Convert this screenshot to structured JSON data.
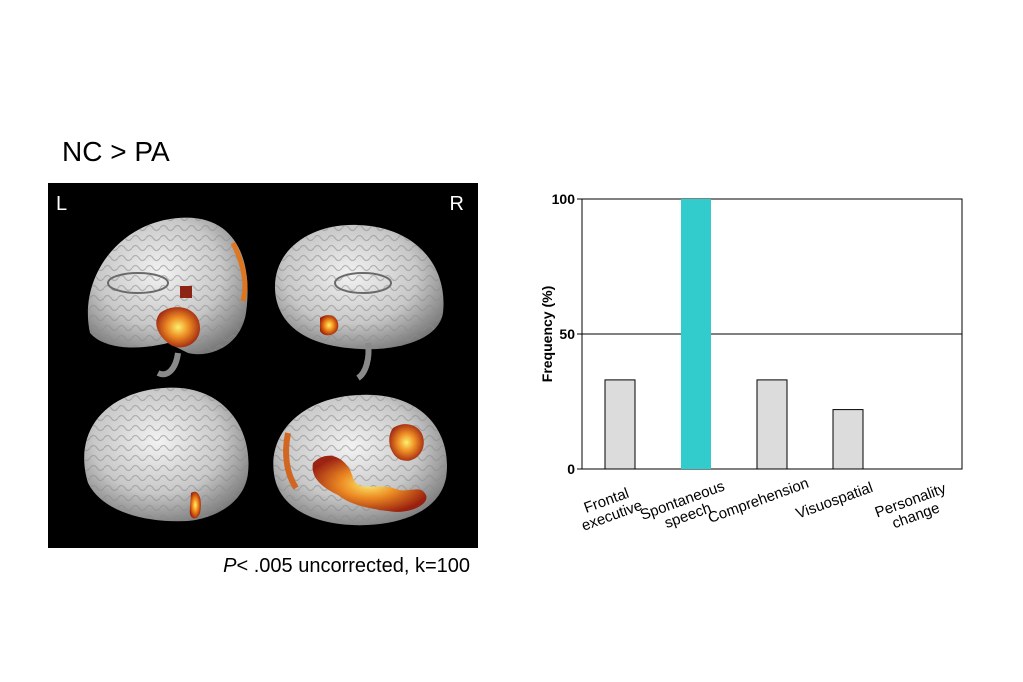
{
  "figure": {
    "title": "NC > PA",
    "left_label": "L",
    "right_label": "R",
    "caption_p": "P",
    "caption_rest": "< .005 uncorrected, k=100"
  },
  "chart_data": {
    "type": "bar",
    "categories": [
      [
        "Frontal",
        "executive"
      ],
      [
        "Spontaneous",
        "speech"
      ],
      [
        "Comprehension"
      ],
      [
        "Visuospatial"
      ],
      [
        "Personality",
        "change"
      ]
    ],
    "values": [
      33,
      100,
      33,
      22,
      0
    ],
    "highlight_index": 1,
    "colors": {
      "bar": "#dcdcdc",
      "highlight": "#33cccc"
    },
    "ylabel": "Frequency (%)",
    "ylim": [
      0,
      100
    ],
    "yticks": [
      0,
      50,
      100
    ],
    "gridline_at": 50
  }
}
